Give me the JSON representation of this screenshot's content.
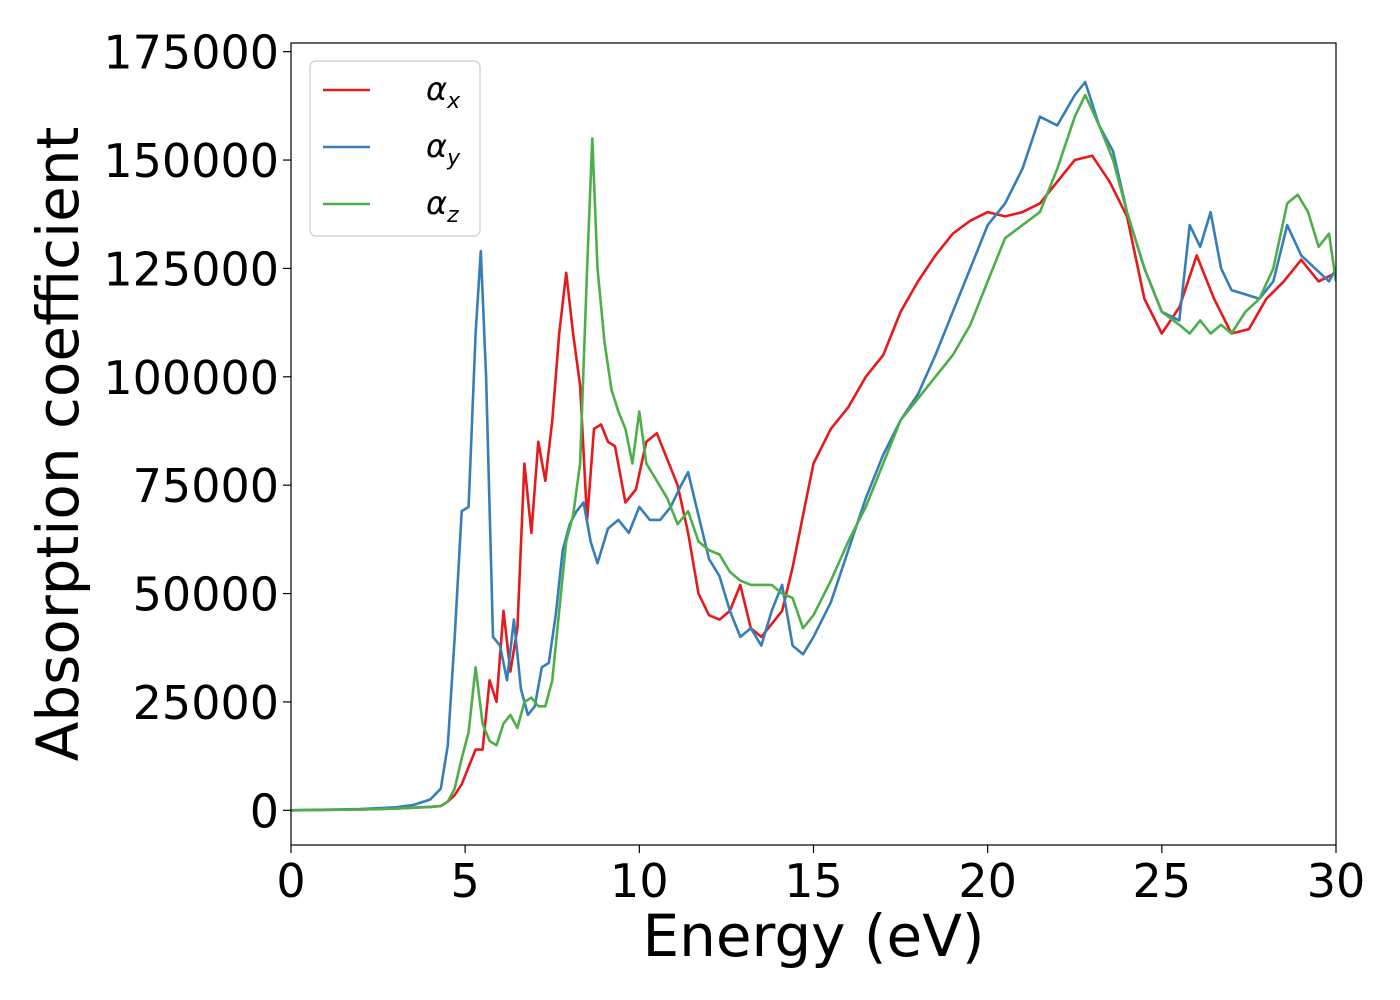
{
  "chart_data": {
    "type": "line",
    "xlabel": "Energy (eV)",
    "ylabel": "Absorption coefficient",
    "xlim": [
      0,
      30
    ],
    "ylim": [
      -8000,
      177000
    ],
    "xticks": [
      0,
      5,
      10,
      15,
      20,
      25,
      30
    ],
    "yticks": [
      0,
      25000,
      50000,
      75000,
      100000,
      125000,
      150000,
      175000
    ],
    "grid": false,
    "legend_position": "top-left",
    "series": [
      {
        "name": "α_x",
        "label_base": "α",
        "label_sub": "x",
        "color": "#e41a1c",
        "x": [
          0,
          2,
          3,
          3.5,
          4,
          4.3,
          4.5,
          4.7,
          4.9,
          5.1,
          5.3,
          5.5,
          5.7,
          5.9,
          6.1,
          6.3,
          6.5,
          6.7,
          6.9,
          7.1,
          7.3,
          7.5,
          7.7,
          7.9,
          8.1,
          8.3,
          8.5,
          8.7,
          8.9,
          9.1,
          9.3,
          9.6,
          9.9,
          10.2,
          10.5,
          10.8,
          11.1,
          11.4,
          11.7,
          12.0,
          12.3,
          12.6,
          12.9,
          13.2,
          13.5,
          13.8,
          14.1,
          14.4,
          14.7,
          15.0,
          15.5,
          16.0,
          16.5,
          17.0,
          17.5,
          18.0,
          18.5,
          19.0,
          19.5,
          20.0,
          20.5,
          21.0,
          21.5,
          22.0,
          22.5,
          23.0,
          23.5,
          24.0,
          24.5,
          25.0,
          25.5,
          26.0,
          26.5,
          27.0,
          27.5,
          28.0,
          28.5,
          29.0,
          29.5,
          30
        ],
        "y": [
          0,
          200,
          400,
          600,
          800,
          1000,
          2000,
          3500,
          6000,
          10000,
          14000,
          14000,
          30000,
          25000,
          46000,
          32000,
          42000,
          80000,
          64000,
          85000,
          76000,
          90000,
          110000,
          124000,
          110000,
          98000,
          67000,
          88000,
          89000,
          85000,
          84000,
          71000,
          74000,
          85000,
          87000,
          81000,
          75000,
          64000,
          50000,
          45000,
          44000,
          46000,
          52000,
          42000,
          40000,
          43000,
          46000,
          56000,
          68000,
          80000,
          88000,
          93000,
          100000,
          105000,
          115000,
          122000,
          128000,
          133000,
          136000,
          138000,
          137000,
          138000,
          140000,
          145000,
          150000,
          151000,
          145000,
          137000,
          118000,
          110000,
          116000,
          128000,
          118000,
          110000,
          111000,
          118000,
          122000,
          127000,
          122000,
          124000
        ],
        "x2": [
          22.7,
          23.0,
          23.4,
          23.8,
          24.2,
          24.6,
          25.0,
          25.4,
          25.8,
          26.2,
          26.6,
          27.0,
          27.4,
          27.8,
          28.2,
          28.6,
          29.0,
          29.4,
          29.8,
          30
        ],
        "y2": [
          148000,
          150000,
          148000,
          140000,
          128000,
          118000,
          111000,
          110000,
          126000,
          118000,
          112000,
          111000,
          113000,
          122000,
          118000,
          126000,
          124000,
          123000,
          133000,
          125000
        ]
      },
      {
        "name": "α_y",
        "label_base": "α",
        "label_sub": "y",
        "color": "#377eb8",
        "x": [
          0,
          2,
          3,
          3.5,
          4,
          4.3,
          4.5,
          4.7,
          4.9,
          5.1,
          5.3,
          5.45,
          5.6,
          5.8,
          6.0,
          6.2,
          6.4,
          6.6,
          6.8,
          7.0,
          7.2,
          7.4,
          7.6,
          7.8,
          8.0,
          8.2,
          8.4,
          8.6,
          8.8,
          9.1,
          9.4,
          9.7,
          10.0,
          10.3,
          10.6,
          10.9,
          11.2,
          11.4,
          11.7,
          12.0,
          12.3,
          12.6,
          12.9,
          13.2,
          13.5,
          13.8,
          14.1,
          14.4,
          14.7,
          15.0,
          15.5,
          16.0,
          16.5,
          17.0,
          17.5,
          18.0,
          18.5,
          19.0,
          19.5,
          20.0,
          20.5,
          21.0,
          21.5,
          22.0,
          22.5,
          22.8,
          23.2,
          23.6,
          24.0,
          24.5,
          25.0,
          25.5,
          25.8,
          26.1,
          26.4,
          26.7,
          27.0,
          27.4,
          27.8,
          28.2,
          28.6,
          29.0,
          29.4,
          29.8,
          30
        ],
        "y": [
          0,
          300,
          700,
          1200,
          2500,
          5000,
          15000,
          40000,
          69000,
          70000,
          110000,
          129000,
          100000,
          40000,
          38000,
          30000,
          44000,
          28000,
          22000,
          24000,
          33000,
          34000,
          45000,
          60000,
          66000,
          69000,
          71000,
          62000,
          57000,
          65000,
          67000,
          64000,
          70000,
          67000,
          67000,
          70000,
          75000,
          78000,
          68000,
          58000,
          54000,
          46000,
          40000,
          42000,
          38000,
          46000,
          52000,
          38000,
          36000,
          40000,
          48000,
          60000,
          72000,
          82000,
          90000,
          96000,
          105000,
          115000,
          125000,
          135000,
          140000,
          148000,
          160000,
          158000,
          165000,
          168000,
          158000,
          152000,
          138000,
          125000,
          115000,
          113000,
          135000,
          130000,
          138000,
          125000,
          120000,
          119000,
          118000,
          122000,
          135000,
          128000,
          125000,
          122000,
          125000
        ]
      },
      {
        "name": "α_z",
        "label_base": "α",
        "label_sub": "z",
        "color": "#4daf4a",
        "x": [
          0,
          2,
          3,
          3.5,
          4,
          4.3,
          4.5,
          4.7,
          4.9,
          5.1,
          5.3,
          5.5,
          5.7,
          5.9,
          6.1,
          6.3,
          6.5,
          6.7,
          6.9,
          7.1,
          7.3,
          7.5,
          7.7,
          7.9,
          8.1,
          8.3,
          8.5,
          8.65,
          8.8,
          9.0,
          9.2,
          9.4,
          9.6,
          9.8,
          10.0,
          10.2,
          10.5,
          10.8,
          11.1,
          11.4,
          11.7,
          12.0,
          12.3,
          12.6,
          12.9,
          13.2,
          13.5,
          13.8,
          14.1,
          14.4,
          14.7,
          15.0,
          15.5,
          16.0,
          16.5,
          17.0,
          17.5,
          18.0,
          18.5,
          19.0,
          19.5,
          20.0,
          20.5,
          21.0,
          21.5,
          22.0,
          22.5,
          22.8,
          23.2,
          23.6,
          24.0,
          24.5,
          25.0,
          25.5,
          25.8,
          26.1,
          26.4,
          26.7,
          27.0,
          27.4,
          27.8,
          28.2,
          28.6,
          28.9,
          29.2,
          29.5,
          29.8,
          30
        ],
        "y": [
          0,
          200,
          400,
          600,
          800,
          1000,
          2000,
          5000,
          12000,
          18000,
          33000,
          20000,
          16000,
          15000,
          20000,
          22000,
          19000,
          25000,
          26000,
          24000,
          24000,
          30000,
          46000,
          62000,
          68000,
          80000,
          125000,
          155000,
          125000,
          108000,
          97000,
          92000,
          88000,
          80000,
          92000,
          80000,
          76000,
          72000,
          66000,
          69000,
          62000,
          60000,
          59000,
          55000,
          53000,
          52000,
          52000,
          52000,
          50000,
          49000,
          42000,
          45000,
          53000,
          62000,
          70000,
          80000,
          90000,
          95000,
          100000,
          105000,
          112000,
          122000,
          132000,
          135000,
          138000,
          148000,
          160000,
          165000,
          158000,
          150000,
          138000,
          125000,
          115000,
          112000,
          110000,
          113000,
          110000,
          112000,
          110000,
          115000,
          118000,
          125000,
          140000,
          142000,
          138000,
          130000,
          133000,
          122000
        ]
      }
    ]
  }
}
